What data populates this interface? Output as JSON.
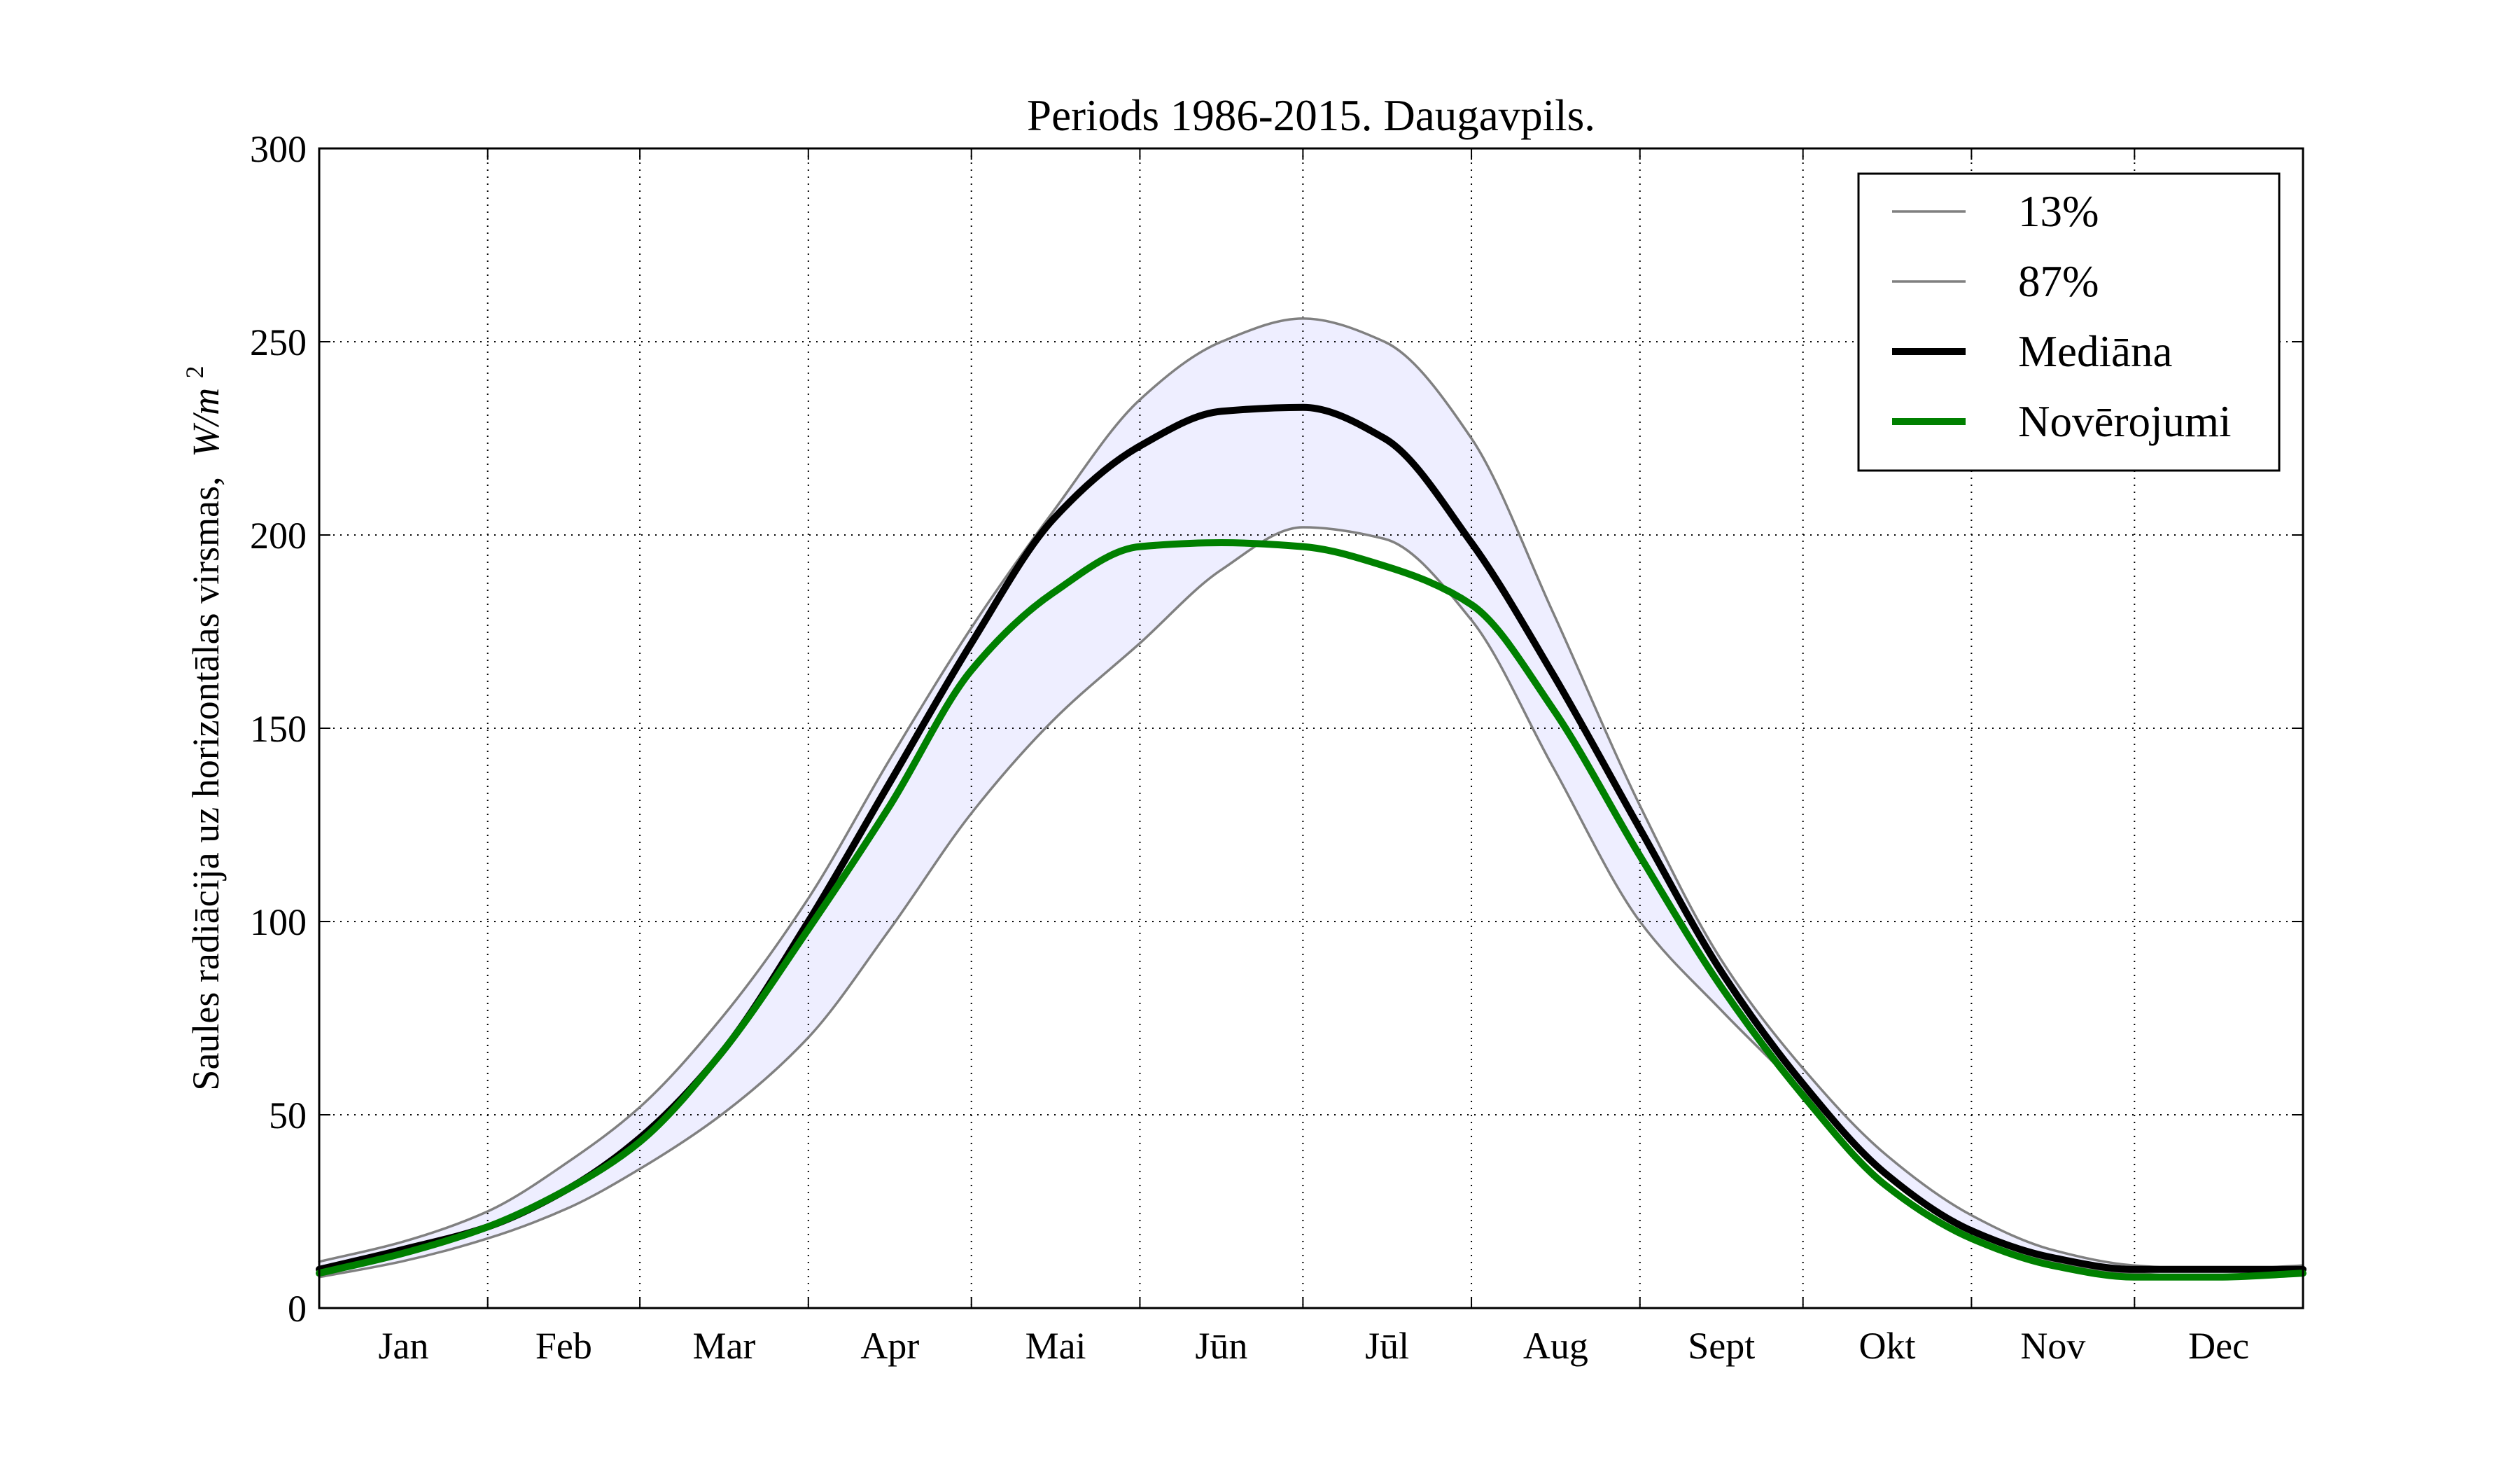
{
  "chart_data": {
    "type": "line",
    "title": "Periods 1986-2015. Daugavpils.",
    "ylabel": "Saules radiācija uz horizontālas virsmas,",
    "ylabel_units": "W/m",
    "ylabel_units_sup": "2",
    "xlabel": "",
    "ylim": [
      0,
      300
    ],
    "yticks": [
      0,
      50,
      100,
      150,
      200,
      250,
      300
    ],
    "xlim": [
      0,
      365
    ],
    "month_boundaries": [
      0,
      31,
      59,
      90,
      120,
      151,
      181,
      212,
      243,
      273,
      304,
      334,
      365
    ],
    "month_labels": [
      "Jan",
      "Feb",
      "Mar",
      "Apr",
      "Mai",
      "Jūn",
      "Jūl",
      "Aug",
      "Sept",
      "Okt",
      "Nov",
      "Dec"
    ],
    "grid": true,
    "legend_position": "top-right",
    "x": [
      0,
      15,
      31,
      46,
      59,
      74,
      90,
      105,
      120,
      135,
      151,
      166,
      181,
      196,
      212,
      227,
      243,
      258,
      273,
      288,
      304,
      319,
      334,
      349,
      365
    ],
    "series": [
      {
        "name": "13%",
        "color": "#808080",
        "style": "thin",
        "values": [
          8,
          12,
          18,
          26,
          36,
          50,
          70,
          98,
          128,
          152,
          172,
          191,
          202,
          199,
          178,
          140,
          100,
          77,
          56,
          35,
          20,
          12,
          9,
          8,
          9
        ]
      },
      {
        "name": "87%",
        "color": "#808080",
        "style": "thin",
        "values": [
          12,
          17,
          25,
          38,
          52,
          75,
          106,
          142,
          176,
          206,
          235,
          250,
          256,
          250,
          225,
          180,
          130,
          90,
          62,
          40,
          24,
          15,
          11,
          10,
          11
        ]
      },
      {
        "name": "Mediāna",
        "color": "#000000",
        "style": "thick",
        "values": [
          10,
          15,
          21,
          31,
          44,
          66,
          100,
          136,
          172,
          204,
          223,
          232,
          233,
          225,
          198,
          164,
          124,
          87,
          58,
          35,
          20,
          13,
          10,
          10,
          10
        ]
      },
      {
        "name": "Novērojumi",
        "color": "#008000",
        "style": "thick",
        "values": [
          9,
          14,
          21,
          31,
          43,
          66,
          98,
          130,
          165,
          185,
          197,
          198,
          197,
          192,
          182,
          155,
          117,
          83,
          55,
          32,
          18,
          11,
          8,
          8,
          9
        ]
      }
    ],
    "band_fill_color": "#eeeeff",
    "band_between": [
      "13%",
      "87%"
    ]
  }
}
